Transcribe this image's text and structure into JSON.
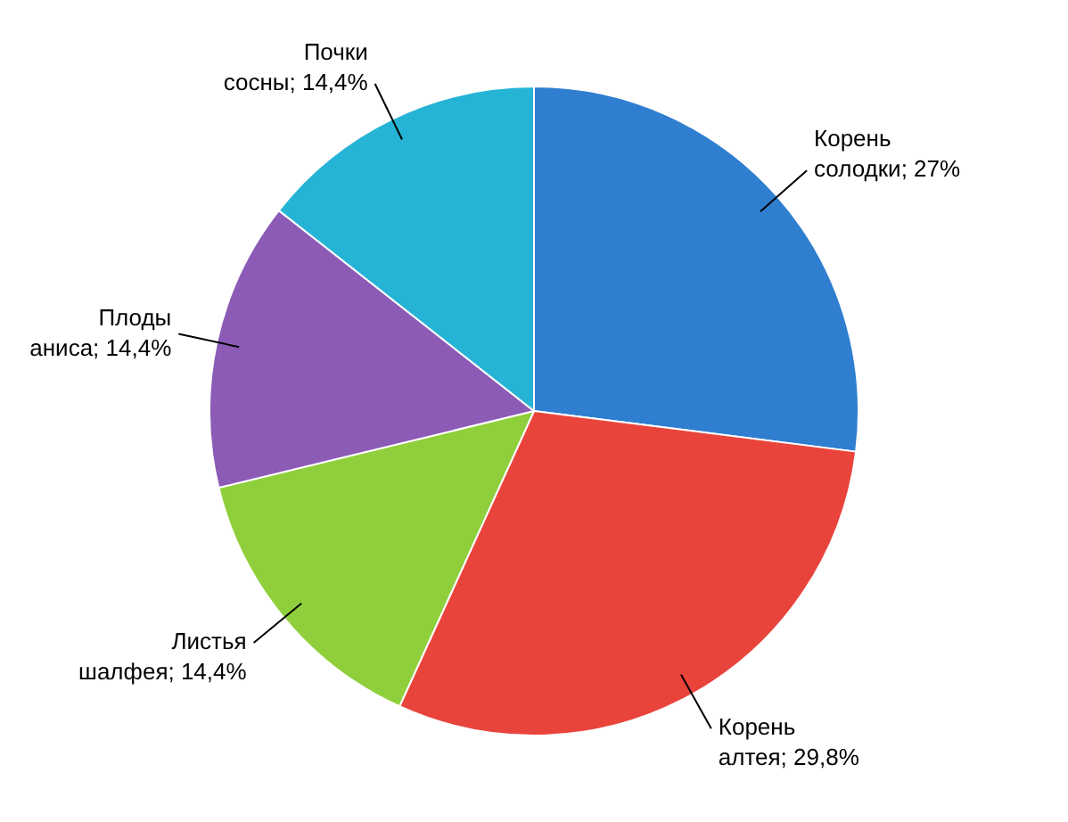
{
  "chart_data": {
    "type": "pie",
    "categories": [
      "Корень солодки",
      "Корень алтея",
      "Листья шалфея",
      "Плоды аниса",
      "Почки сосны"
    ],
    "values": [
      27,
      29.8,
      14.4,
      14.4,
      14.4
    ],
    "value_labels": [
      "27%",
      "29,8%",
      "14,4%",
      "14,4%",
      "14,4%"
    ],
    "colors": [
      "#2f7ed0",
      "#e9443c",
      "#90cf3c",
      "#8b5bb6",
      "#26b4d6"
    ],
    "legend": false
  }
}
